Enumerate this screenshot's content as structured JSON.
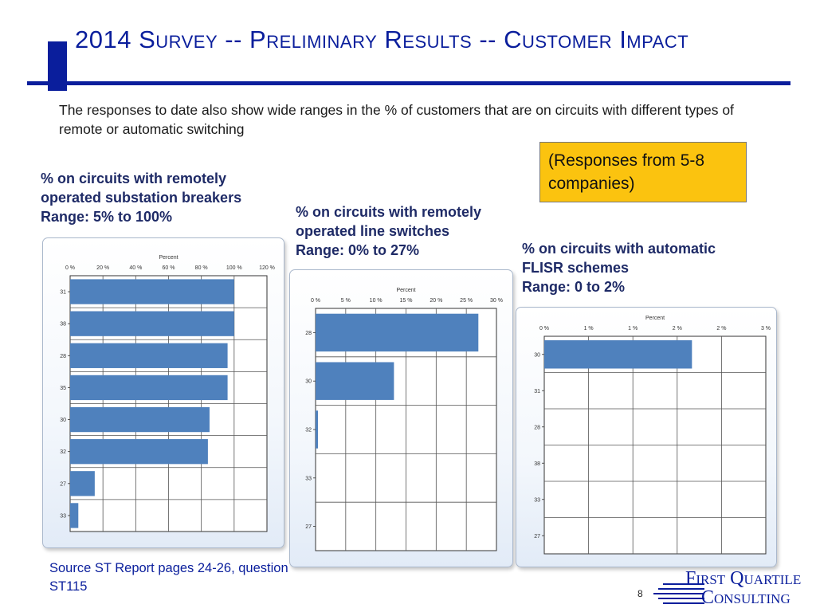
{
  "title": "2014 Survey   --  Preliminary Results -- Customer Impact",
  "intro": "The responses to date also show wide ranges in the % of customers that are on circuits with different types of remote or automatic switching",
  "note": "(Responses from 5-8 companies)",
  "source": "Source ST Report pages 24-26, question ST115",
  "page_number": "8",
  "logo": {
    "line1": "First Quartile",
    "line2": "Consulting"
  },
  "colors": {
    "title": "#0a1e9c",
    "bar": "#4f81bd",
    "note_bg": "#fbc30f"
  },
  "chart_titles": [
    [
      "% on circuits with remotely",
      "operated substation breakers",
      "Range: 5% to 100%"
    ],
    [
      "% on circuits with remotely",
      "operated line switches",
      "Range: 0% to 27%"
    ],
    [
      "% on circuits with automatic",
      "FLISR schemes",
      "Range: 0 to 2%"
    ]
  ],
  "chart_data": [
    {
      "type": "bar",
      "orientation": "horizontal",
      "title": "",
      "xlabel": "Percent",
      "ylabel": "",
      "xlim": [
        0,
        120
      ],
      "ticks": [
        "0 %",
        "20 %",
        "40 %",
        "60 %",
        "80 %",
        "100 %",
        "120 %"
      ],
      "categories": [
        "31",
        "38",
        "28",
        "35",
        "30",
        "32",
        "27",
        "33"
      ],
      "values": [
        100,
        100,
        96,
        96,
        85,
        84,
        15,
        5
      ],
      "grid": true
    },
    {
      "type": "bar",
      "orientation": "horizontal",
      "title": "",
      "xlabel": "Percent",
      "ylabel": "",
      "xlim": [
        0,
        30
      ],
      "ticks": [
        "0 %",
        "5 %",
        "10 %",
        "15 %",
        "20 %",
        "25 %",
        "30 %"
      ],
      "categories": [
        "28",
        "30",
        "32",
        "33",
        "27"
      ],
      "values": [
        27,
        13,
        0.4,
        0,
        0
      ],
      "grid": true
    },
    {
      "type": "bar",
      "orientation": "horizontal",
      "title": "",
      "xlabel": "Percent",
      "ylabel": "",
      "xlim": [
        0,
        3
      ],
      "ticks": [
        "0 %",
        "1 %",
        "1 %",
        "2 %",
        "2 %",
        "3 %"
      ],
      "categories": [
        "30",
        "31",
        "28",
        "38",
        "33",
        "27"
      ],
      "values": [
        2,
        0,
        0,
        0,
        0,
        0
      ],
      "grid": true
    }
  ]
}
